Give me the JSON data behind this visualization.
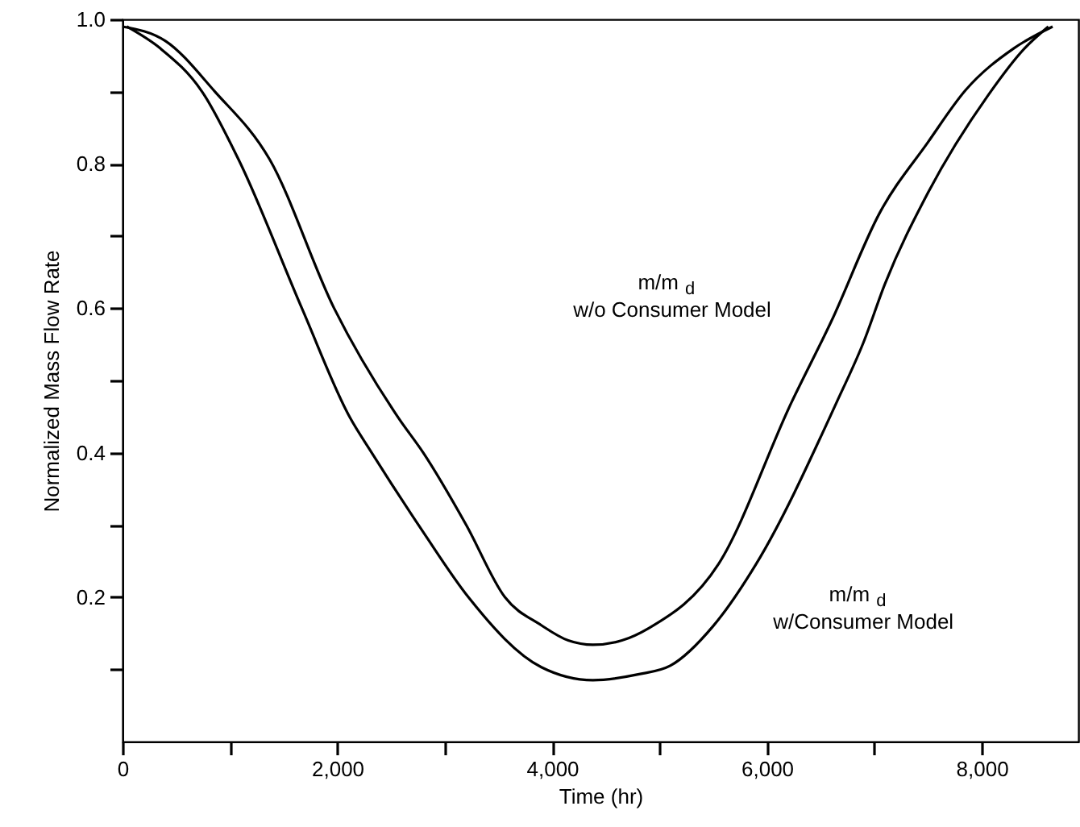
{
  "chart_data": {
    "type": "line",
    "xlabel": "Time (hr)",
    "ylabel": "Normalized Mass Flow Rate",
    "xlim": [
      0,
      8900
    ],
    "ylim": [
      0,
      1.0
    ],
    "xticks": [
      0,
      {
        "value": 1000,
        "label": null
      },
      {
        "value": 2000,
        "label": "2,000"
      },
      {
        "value": 3000,
        "label": null
      },
      {
        "value": 4000,
        "label": "4,000"
      },
      {
        "value": 5000,
        "label": null
      },
      {
        "value": 6000,
        "label": "6,000"
      },
      {
        "value": 7000,
        "label": null
      },
      {
        "value": 8000,
        "label": "8,000"
      }
    ],
    "yticks": [
      {
        "value": 0.1,
        "label": null
      },
      0.2,
      {
        "value": 0.3,
        "label": null
      },
      0.4,
      {
        "value": 0.5,
        "label": null
      },
      0.6,
      {
        "value": 0.7,
        "label": null
      },
      0.8,
      {
        "value": 0.9,
        "label": null
      },
      {
        "value": 1.0,
        "label": "1.0"
      }
    ],
    "series": [
      {
        "color": "#000000",
        "x": [
          0,
          400,
          860,
          1370,
          1970,
          2570,
          2800,
          3200,
          3560,
          3900,
          4150,
          4380,
          4650,
          4900,
          5550,
          6230,
          6600,
          7050,
          7500,
          7850,
          8300,
          8660
        ],
        "values": [
          0.99,
          0.97,
          0.9,
          0.806,
          0.6,
          0.448,
          0.4,
          0.3,
          0.2,
          0.161,
          0.14,
          0.134,
          0.14,
          0.157,
          0.246,
          0.47,
          0.582,
          0.732,
          0.83,
          0.902,
          0.96,
          0.99
        ]
      },
      {
        "color": "#000000",
        "x": [
          40,
          350,
          740,
          1080,
          1670,
          2120,
          2320,
          2800,
          3220,
          3900,
          4380,
          4800,
          5100,
          5500,
          5900,
          6650,
          6900,
          7100,
          7500,
          8060,
          8400,
          8620
        ],
        "values": [
          0.99,
          0.96,
          0.9,
          0.806,
          0.6,
          0.448,
          0.4,
          0.29,
          0.2,
          0.103,
          0.085,
          0.093,
          0.105,
          0.16,
          0.246,
          0.47,
          0.553,
          0.634,
          0.76,
          0.895,
          0.96,
          0.99
        ]
      }
    ],
    "annotations": [
      "m/m $_{d}$\nw/o Consumer Model",
      "m/m $_{d}$\nw/Consumer Model"
    ]
  }
}
